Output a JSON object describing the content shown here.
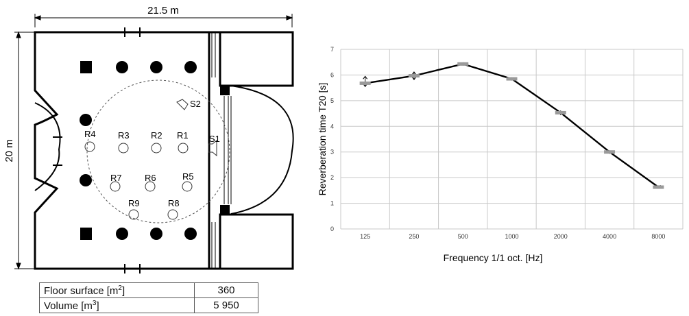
{
  "floor_plan": {
    "width_label": "21.5 m",
    "height_label": "20 m",
    "sources": [
      "S1",
      "S2"
    ],
    "receivers": [
      "R1",
      "R2",
      "R3",
      "R4",
      "R5",
      "R6",
      "R7",
      "R8",
      "R9"
    ]
  },
  "room_table": {
    "rows": [
      {
        "label": "Floor surface [m",
        "sup": "2",
        "label_end": "]",
        "value": "360"
      },
      {
        "label": "Volume [m",
        "sup": "3",
        "label_end": "]",
        "value": "5 950"
      }
    ]
  },
  "chart_data": {
    "type": "line",
    "categories": [
      "125",
      "250",
      "500",
      "1000",
      "2000",
      "4000",
      "8000"
    ],
    "series": [
      {
        "values": [
          5.68,
          5.97,
          6.43,
          5.85,
          4.53,
          3.0,
          1.63
        ],
        "color": "#000000"
      }
    ],
    "error_range": [
      [
        5.55,
        5.95
      ],
      [
        5.82,
        6.12
      ],
      [
        6.38,
        6.48
      ],
      [
        5.8,
        5.9
      ],
      [
        4.45,
        4.6
      ],
      [
        2.94,
        3.05
      ],
      [
        1.6,
        1.68
      ]
    ],
    "xlabel": "Frequency 1/1 oct. [Hz]",
    "ylabel": "Reverberation time T20 [s]",
    "yticks": [
      "0",
      "1",
      "2",
      "3",
      "4",
      "5",
      "6",
      "7"
    ],
    "ylim": [
      0,
      7
    ],
    "grid": true,
    "legend": "none"
  }
}
